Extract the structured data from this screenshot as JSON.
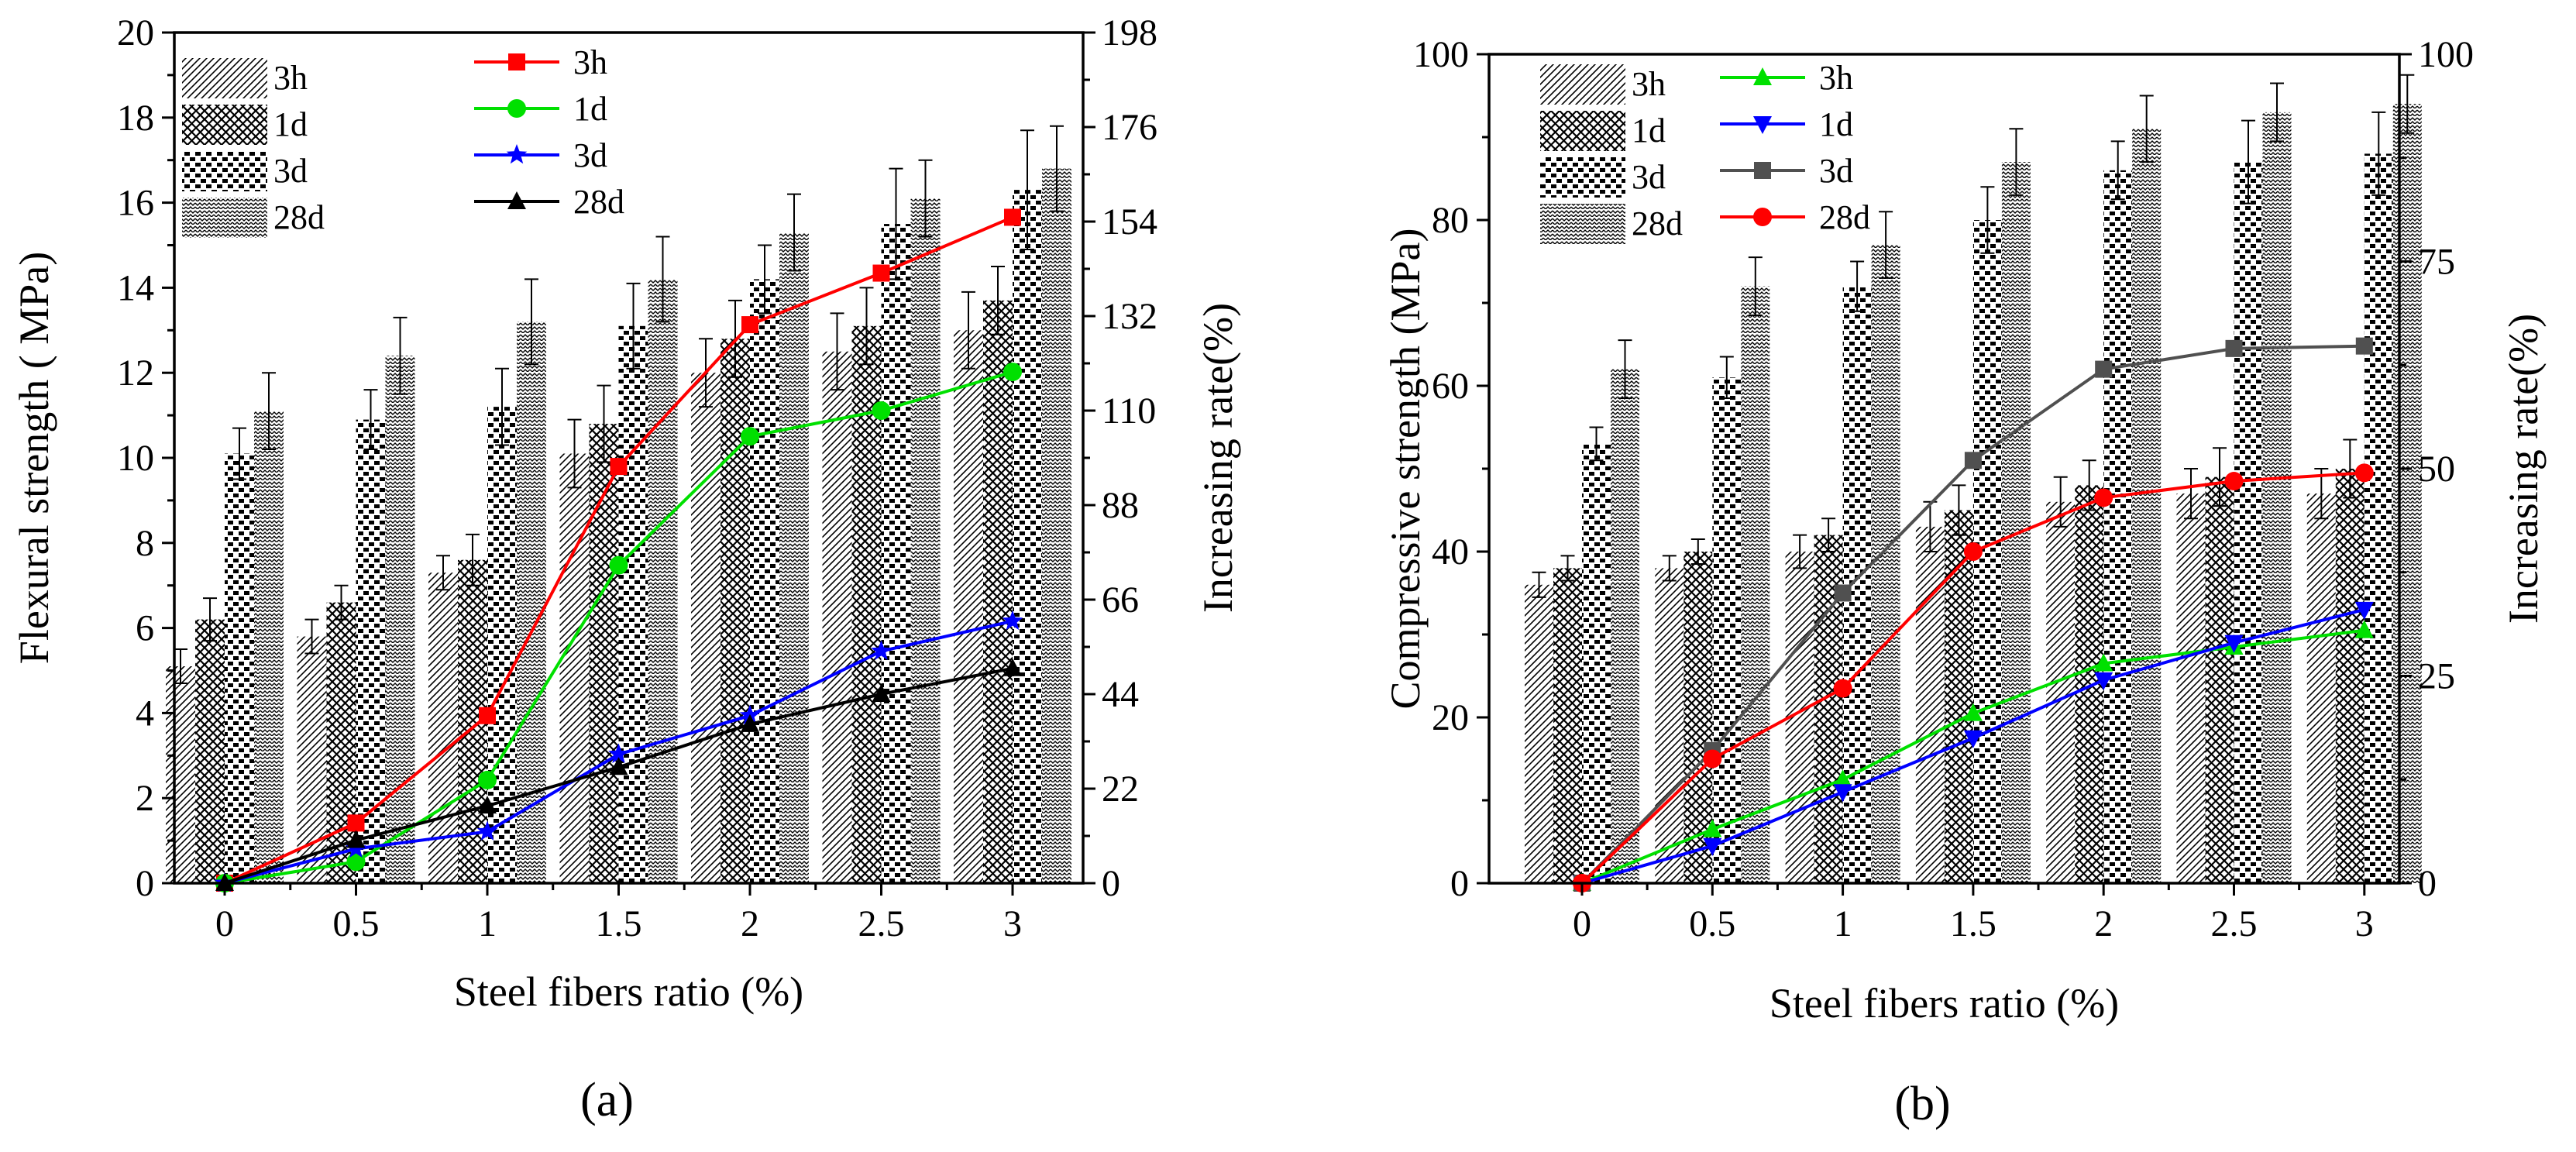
{
  "chart_data": [
    {
      "type": "bar",
      "panel_label": "(a)",
      "panel_letter": "a",
      "xlabel": "Steel fibers ratio (%)",
      "ylabel": "Flexural strength ( MPa)",
      "y2label": "Increasing rate(%)",
      "categories": [
        "0",
        "0.5",
        "1",
        "1.5",
        "2",
        "2.5",
        "3"
      ],
      "ylim": [
        0,
        20
      ],
      "yticks": [
        "0",
        "2",
        "4",
        "6",
        "8",
        "10",
        "12",
        "14",
        "16",
        "18",
        "20"
      ],
      "y2lim": [
        0,
        198
      ],
      "y2ticks": [
        "0",
        "22",
        "44",
        "66",
        "88",
        "110",
        "132",
        "154",
        "176",
        "198"
      ],
      "bar_series": [
        {
          "name": "3h",
          "pattern": "diag",
          "values": [
            5.1,
            5.8,
            7.3,
            10.1,
            12.0,
            12.5,
            13.0
          ],
          "errors": [
            0.4,
            0.4,
            0.4,
            0.8,
            0.8,
            0.9,
            0.9
          ]
        },
        {
          "name": "1d",
          "pattern": "cross",
          "values": [
            6.2,
            6.6,
            7.6,
            10.8,
            12.8,
            13.1,
            13.7
          ],
          "errors": [
            0.5,
            0.4,
            0.6,
            0.9,
            0.9,
            0.9,
            0.8
          ]
        },
        {
          "name": "3d",
          "pattern": "blocks",
          "values": [
            10.1,
            10.9,
            11.2,
            13.1,
            14.2,
            15.5,
            16.3
          ],
          "errors": [
            0.6,
            0.7,
            0.9,
            1.0,
            0.8,
            1.3,
            1.4
          ]
        },
        {
          "name": "28d",
          "pattern": "wave",
          "values": [
            11.1,
            12.4,
            13.2,
            14.2,
            15.3,
            16.1,
            16.8
          ],
          "errors": [
            0.9,
            0.9,
            1.0,
            1.0,
            0.9,
            0.9,
            1.0
          ]
        }
      ],
      "line_series": [
        {
          "name": "3h",
          "color": "#ff0000",
          "marker": "square",
          "values": [
            0,
            14,
            39,
            97,
            130,
            142,
            155
          ]
        },
        {
          "name": "1d",
          "color": "#00e000",
          "marker": "circle",
          "values": [
            0,
            5,
            24,
            74,
            104,
            110,
            119
          ]
        },
        {
          "name": "3d",
          "color": "#0000ff",
          "marker": "star",
          "values": [
            0,
            8,
            12,
            30,
            39,
            54,
            61
          ]
        },
        {
          "name": "28d",
          "color": "#000000",
          "marker": "triangle-up",
          "values": [
            0,
            10,
            18,
            27,
            37,
            44,
            50
          ]
        }
      ]
    },
    {
      "type": "bar",
      "panel_label": "(b)",
      "panel_letter": "b",
      "xlabel": "Steel fibers ratio (%)",
      "ylabel": "Compressive strength (MPa)",
      "y2label": "Increasing rate(%)",
      "categories": [
        "0",
        "0.5",
        "1",
        "1.5",
        "2",
        "2.5",
        "3"
      ],
      "ylim": [
        0,
        100
      ],
      "yticks": [
        "0",
        "20",
        "40",
        "60",
        "80",
        "100"
      ],
      "y2lim": [
        0,
        100
      ],
      "y2ticks": [
        "0",
        "25",
        "50",
        "75",
        "100"
      ],
      "bar_series": [
        {
          "name": "3h",
          "pattern": "diag",
          "values": [
            36,
            38,
            40,
            43,
            46,
            47,
            47
          ],
          "errors": [
            1.5,
            1.5,
            2.0,
            3.0,
            3.0,
            3.0,
            3.0
          ]
        },
        {
          "name": "1d",
          "pattern": "cross",
          "values": [
            38,
            40,
            42,
            45,
            48,
            49,
            50
          ],
          "errors": [
            1.5,
            1.5,
            2.0,
            3.0,
            3.0,
            3.5,
            3.5
          ]
        },
        {
          "name": "3d",
          "pattern": "blocks",
          "values": [
            53,
            61,
            72,
            80,
            86,
            87,
            88
          ],
          "errors": [
            2.0,
            2.5,
            3.0,
            4.0,
            3.5,
            5.0,
            5.0
          ]
        },
        {
          "name": "28d",
          "pattern": "wave",
          "values": [
            62,
            72,
            77,
            87,
            91,
            93,
            94
          ],
          "errors": [
            3.5,
            3.5,
            4.0,
            4.0,
            4.0,
            3.5,
            3.5
          ]
        }
      ],
      "line_series": [
        {
          "name": "3h",
          "color": "#00e000",
          "marker": "triangle-up",
          "values": [
            0,
            6.5,
            12.5,
            20.5,
            26.5,
            28.5,
            30.5
          ]
        },
        {
          "name": "1d",
          "color": "#0000ff",
          "marker": "triangle-down",
          "values": [
            0,
            4.5,
            11,
            17.5,
            24.5,
            29,
            33
          ]
        },
        {
          "name": "3d",
          "color": "#505050",
          "marker": "square",
          "values": [
            0,
            16,
            35,
            51,
            62,
            64.5,
            64.8
          ]
        },
        {
          "name": "28d",
          "color": "#ff0000",
          "marker": "circle",
          "values": [
            0,
            15,
            23.5,
            40,
            46.5,
            48.5,
            49.5
          ]
        }
      ]
    }
  ]
}
